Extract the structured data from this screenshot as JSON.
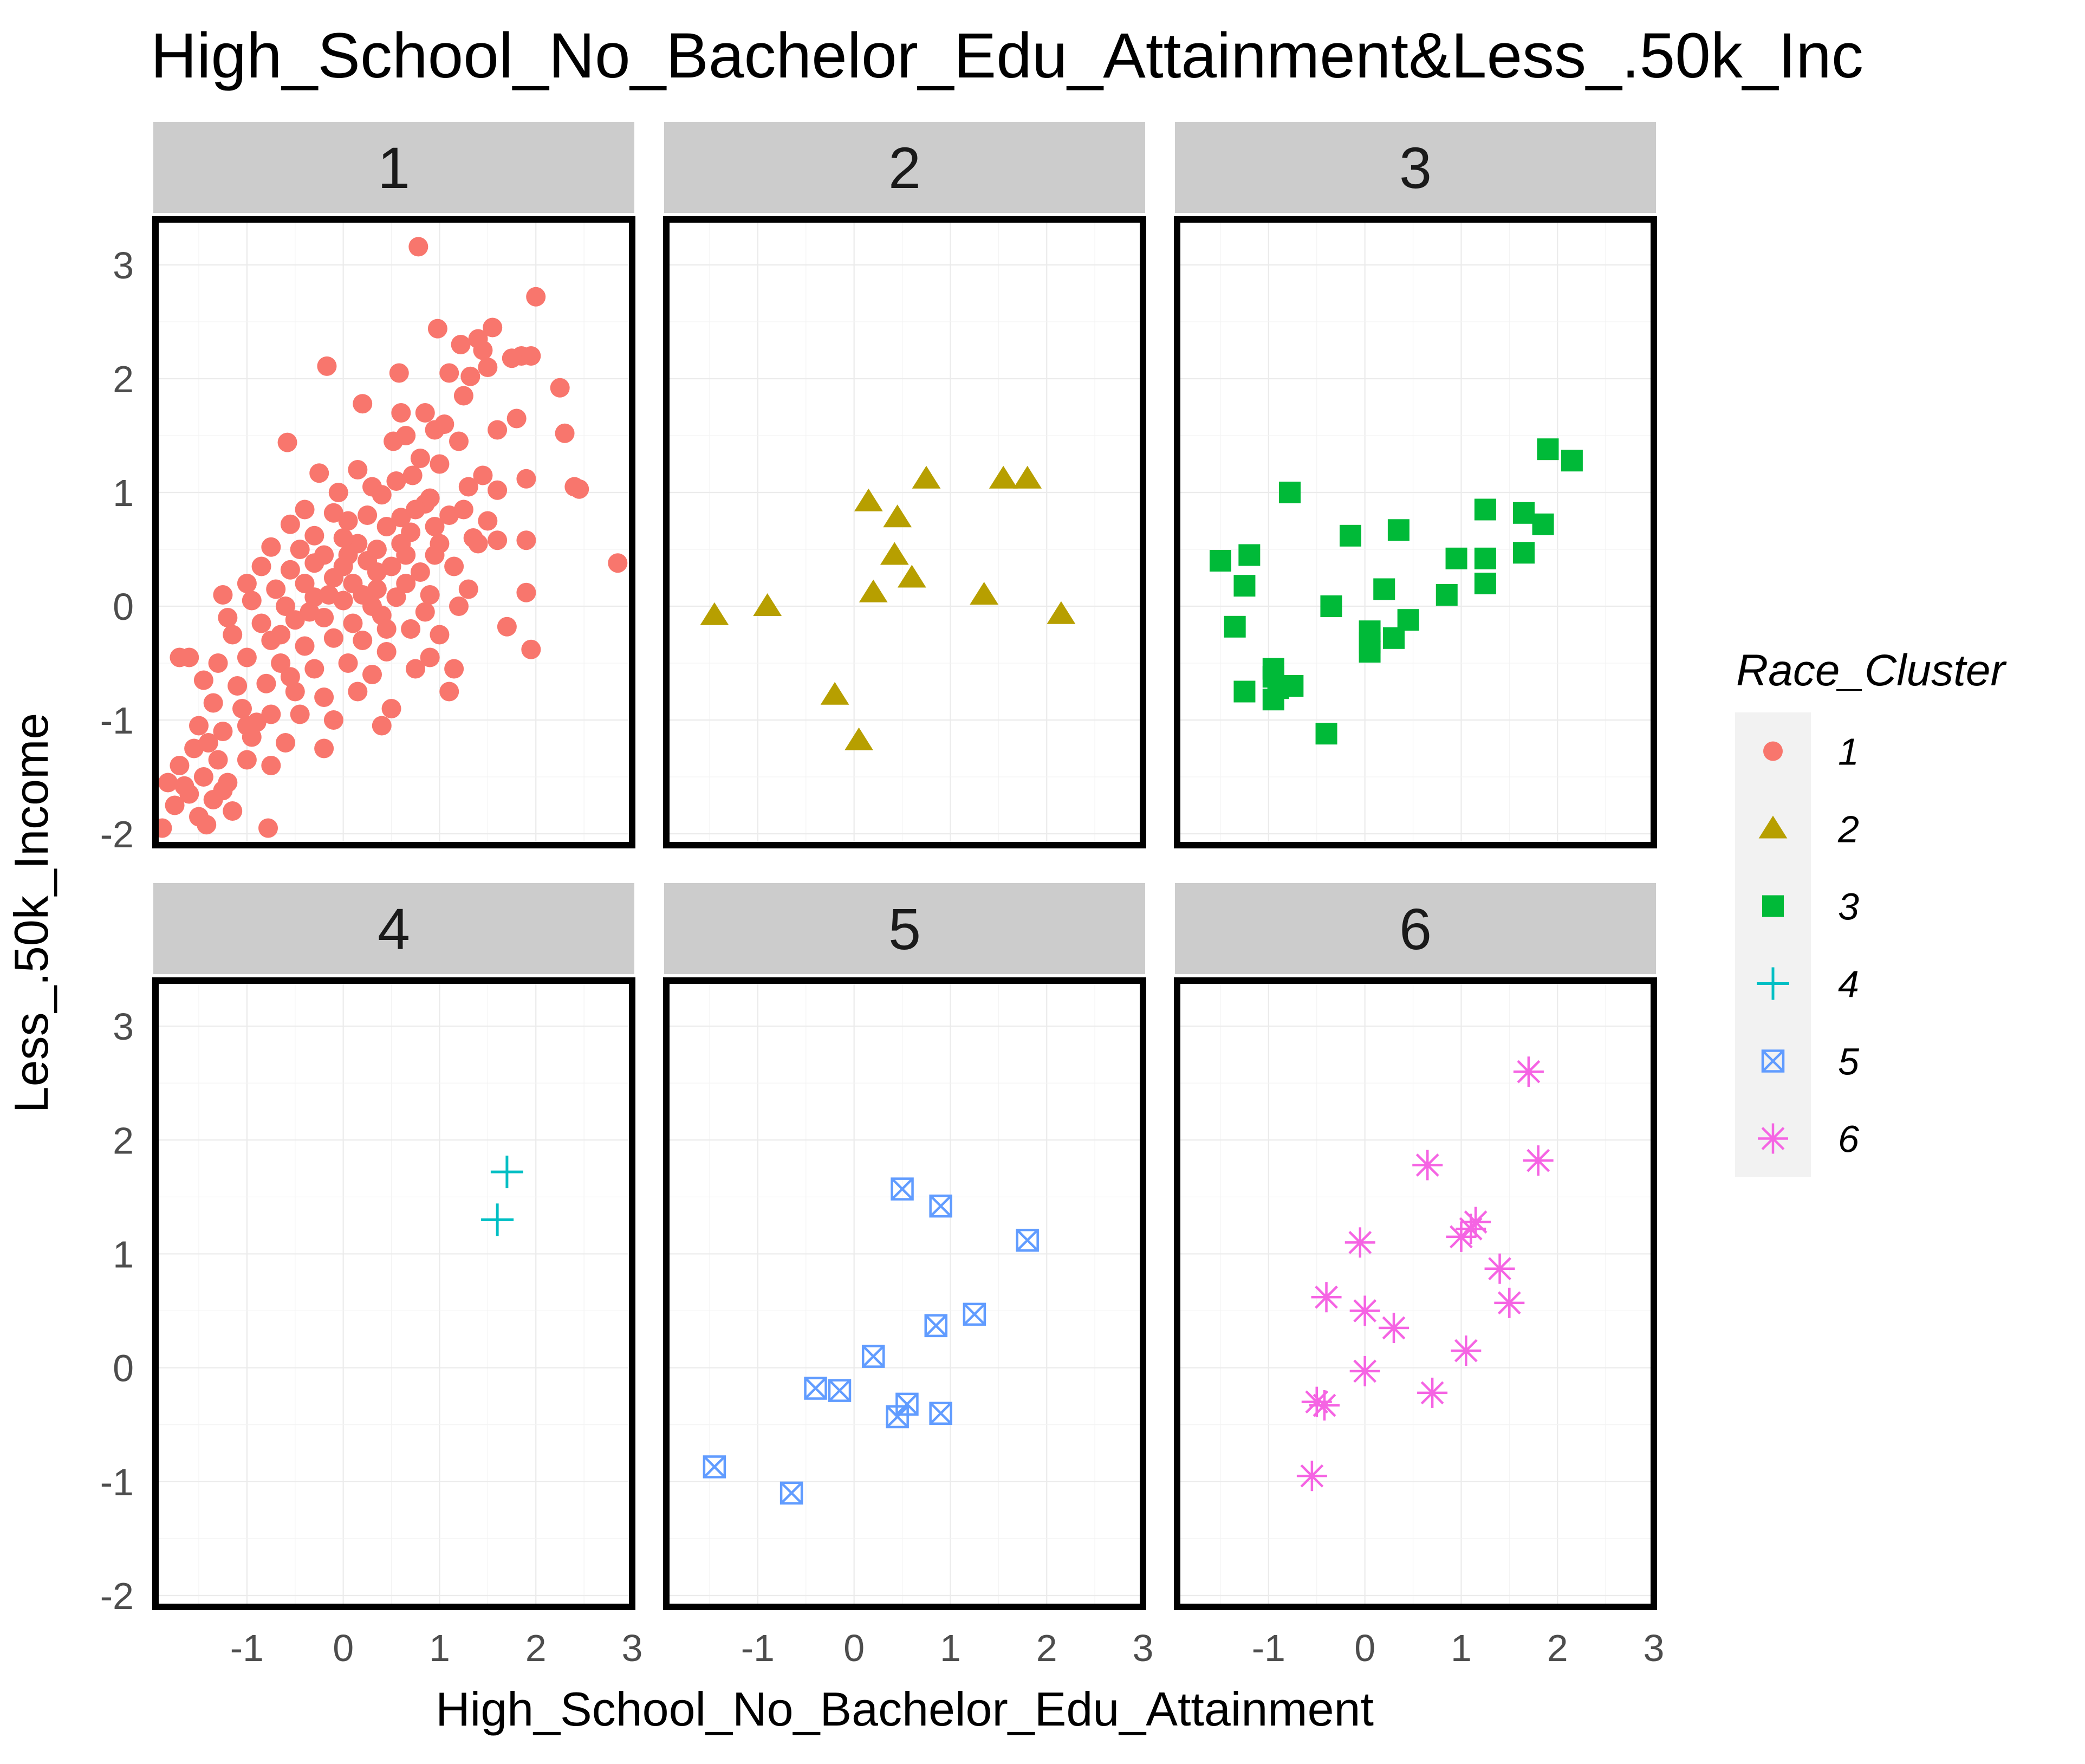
{
  "chart_data": {
    "type": "scatter",
    "title": "High_School_No_Bachelor_Edu_Attainment&Less_.50k_Inc",
    "xlabel": "High_School_No_Bachelor_Edu_Attainment",
    "ylabel": "Less_.50k_Income",
    "xlim": [
      -1.95,
      3.0
    ],
    "ylim": [
      -2.1,
      3.4
    ],
    "x_ticks": [
      -1,
      0,
      1,
      2,
      3
    ],
    "y_ticks": [
      -2,
      -1,
      0,
      1,
      2,
      3
    ],
    "grid": true,
    "facet_by": "Race_Cluster",
    "legend": {
      "title": "Race_Cluster",
      "position": "right",
      "entries": [
        "1",
        "2",
        "3",
        "4",
        "5",
        "6"
      ]
    },
    "colors": {
      "1": "#F8766D",
      "2": "#B79F00",
      "3": "#00BA38",
      "4": "#00BFC4",
      "5": "#619CFF",
      "6": "#F564E3"
    },
    "shapes": {
      "1": "circle",
      "2": "triangle",
      "3": "square",
      "4": "plus",
      "5": "boxed-x",
      "6": "asterisk"
    },
    "series": [
      {
        "name": "1",
        "points": [
          [
            0.78,
            3.16
          ],
          [
            2.0,
            2.72
          ],
          [
            0.98,
            2.44
          ],
          [
            1.55,
            2.45
          ],
          [
            1.4,
            2.35
          ],
          [
            1.45,
            2.25
          ],
          [
            1.85,
            2.2
          ],
          [
            1.75,
            2.18
          ],
          [
            1.95,
            2.2
          ],
          [
            -0.17,
            2.11
          ],
          [
            0.58,
            2.05
          ],
          [
            1.22,
            2.3
          ],
          [
            1.1,
            2.05
          ],
          [
            1.32,
            2.02
          ],
          [
            1.5,
            2.1
          ],
          [
            2.25,
            1.92
          ],
          [
            1.25,
            1.85
          ],
          [
            0.2,
            1.78
          ],
          [
            0.6,
            1.7
          ],
          [
            0.85,
            1.7
          ],
          [
            1.05,
            1.6
          ],
          [
            1.6,
            1.55
          ],
          [
            2.3,
            1.52
          ],
          [
            0.65,
            1.5
          ],
          [
            0.95,
            1.55
          ],
          [
            1.2,
            1.45
          ],
          [
            1.8,
            1.65
          ],
          [
            -0.58,
            1.44
          ],
          [
            0.52,
            1.45
          ],
          [
            0.8,
            1.3
          ],
          [
            1.45,
            1.15
          ],
          [
            1.0,
            1.25
          ],
          [
            0.15,
            1.2
          ],
          [
            -0.25,
            1.17
          ],
          [
            -0.05,
            1.0
          ],
          [
            0.3,
            1.05
          ],
          [
            0.55,
            1.1
          ],
          [
            0.72,
            1.15
          ],
          [
            1.3,
            1.05
          ],
          [
            1.6,
            1.02
          ],
          [
            1.9,
            1.12
          ],
          [
            2.4,
            1.05
          ],
          [
            2.45,
            1.03
          ],
          [
            0.4,
            0.98
          ],
          [
            0.9,
            0.95
          ],
          [
            1.1,
            0.8
          ],
          [
            1.5,
            0.75
          ],
          [
            -0.4,
            0.85
          ],
          [
            -0.1,
            0.82
          ],
          [
            0.25,
            0.8
          ],
          [
            0.6,
            0.78
          ],
          [
            0.85,
            0.9
          ],
          [
            1.25,
            0.85
          ],
          [
            -0.55,
            0.72
          ],
          [
            -0.3,
            0.62
          ],
          [
            0.05,
            0.75
          ],
          [
            0.45,
            0.7
          ],
          [
            0.7,
            0.65
          ],
          [
            1.0,
            0.55
          ],
          [
            1.35,
            0.6
          ],
          [
            1.9,
            0.58
          ],
          [
            -0.75,
            0.52
          ],
          [
            -0.45,
            0.5
          ],
          [
            -0.2,
            0.45
          ],
          [
            0.15,
            0.55
          ],
          [
            0.35,
            0.5
          ],
          [
            0.6,
            0.55
          ],
          [
            0.95,
            0.45
          ],
          [
            1.4,
            0.55
          ],
          [
            1.6,
            0.58
          ],
          [
            2.85,
            0.38
          ],
          [
            -0.85,
            0.35
          ],
          [
            -0.55,
            0.32
          ],
          [
            -0.3,
            0.38
          ],
          [
            0.0,
            0.35
          ],
          [
            0.25,
            0.4
          ],
          [
            0.5,
            0.35
          ],
          [
            0.8,
            0.3
          ],
          [
            1.15,
            0.35
          ],
          [
            -1.0,
            0.2
          ],
          [
            -0.7,
            0.15
          ],
          [
            -0.4,
            0.2
          ],
          [
            -0.1,
            0.25
          ],
          [
            0.1,
            0.2
          ],
          [
            0.35,
            0.15
          ],
          [
            0.65,
            0.2
          ],
          [
            0.9,
            0.1
          ],
          [
            1.3,
            0.15
          ],
          [
            -1.25,
            0.1
          ],
          [
            -0.95,
            0.05
          ],
          [
            -0.6,
            0.0
          ],
          [
            -0.3,
            0.08
          ],
          [
            0.0,
            0.05
          ],
          [
            0.3,
            0.0
          ],
          [
            0.55,
            0.08
          ],
          [
            0.85,
            -0.05
          ],
          [
            1.2,
            0.0
          ],
          [
            1.9,
            0.12
          ],
          [
            -1.2,
            -0.1
          ],
          [
            -0.85,
            -0.15
          ],
          [
            -0.5,
            -0.12
          ],
          [
            -0.2,
            -0.1
          ],
          [
            0.1,
            -0.15
          ],
          [
            0.4,
            -0.08
          ],
          [
            0.7,
            -0.2
          ],
          [
            1.0,
            -0.25
          ],
          [
            1.7,
            -0.18
          ],
          [
            -1.15,
            -0.25
          ],
          [
            -0.75,
            -0.3
          ],
          [
            -0.4,
            -0.35
          ],
          [
            -0.1,
            -0.28
          ],
          [
            0.2,
            -0.3
          ],
          [
            0.45,
            -0.4
          ],
          [
            0.9,
            -0.45
          ],
          [
            1.95,
            -0.38
          ],
          [
            -1.6,
            -0.45
          ],
          [
            -1.3,
            -0.5
          ],
          [
            -1.0,
            -0.45
          ],
          [
            -0.65,
            -0.5
          ],
          [
            -0.3,
            -0.55
          ],
          [
            0.05,
            -0.5
          ],
          [
            0.3,
            -0.6
          ],
          [
            0.75,
            -0.55
          ],
          [
            1.15,
            -0.55
          ],
          [
            -1.45,
            -0.65
          ],
          [
            -1.1,
            -0.7
          ],
          [
            -0.8,
            -0.68
          ],
          [
            -0.5,
            -0.75
          ],
          [
            -0.2,
            -0.8
          ],
          [
            0.15,
            -0.75
          ],
          [
            0.5,
            -0.9
          ],
          [
            1.1,
            -0.75
          ],
          [
            -1.35,
            -0.85
          ],
          [
            -1.05,
            -0.9
          ],
          [
            -0.75,
            -0.95
          ],
          [
            -0.45,
            -0.95
          ],
          [
            -0.1,
            -1.0
          ],
          [
            0.4,
            -1.05
          ],
          [
            -1.5,
            -1.05
          ],
          [
            -1.25,
            -1.1
          ],
          [
            -0.95,
            -1.15
          ],
          [
            -0.6,
            -1.2
          ],
          [
            -0.2,
            -1.25
          ],
          [
            -1.55,
            -1.25
          ],
          [
            -1.3,
            -1.35
          ],
          [
            -1.0,
            -1.35
          ],
          [
            -0.75,
            -1.4
          ],
          [
            -1.7,
            -1.4
          ],
          [
            -1.45,
            -1.5
          ],
          [
            -1.2,
            -1.55
          ],
          [
            -1.82,
            -1.55
          ],
          [
            -1.6,
            -1.65
          ],
          [
            -1.35,
            -1.7
          ],
          [
            -1.75,
            -1.75
          ],
          [
            -1.5,
            -1.85
          ],
          [
            -1.15,
            -1.8
          ],
          [
            -1.88,
            -1.95
          ],
          [
            -1.42,
            -1.92
          ],
          [
            -0.78,
            -1.95
          ],
          [
            -1.65,
            -1.58
          ],
          [
            -1.25,
            -1.62
          ],
          [
            -0.9,
            -1.02
          ],
          [
            -0.55,
            -0.62
          ],
          [
            0.0,
            0.6
          ],
          [
            0.2,
            0.1
          ],
          [
            0.65,
            0.45
          ],
          [
            -0.15,
            0.1
          ],
          [
            0.45,
            -0.2
          ],
          [
            -0.65,
            -0.25
          ],
          [
            0.95,
            0.7
          ],
          [
            -1.7,
            -0.45
          ],
          [
            -1.4,
            -1.2
          ],
          [
            -1.0,
            -1.05
          ],
          [
            0.05,
            0.45
          ],
          [
            0.35,
            0.3
          ],
          [
            -0.35,
            -0.05
          ],
          [
            0.75,
            0.85
          ]
        ]
      },
      {
        "name": "2",
        "points": [
          [
            0.75,
            1.12
          ],
          [
            1.55,
            1.12
          ],
          [
            1.8,
            1.12
          ],
          [
            0.15,
            0.92
          ],
          [
            0.45,
            0.78
          ],
          [
            0.42,
            0.45
          ],
          [
            0.6,
            0.25
          ],
          [
            0.2,
            0.12
          ],
          [
            1.35,
            0.1
          ],
          [
            -0.9,
            0.0
          ],
          [
            -1.45,
            -0.08
          ],
          [
            2.15,
            -0.07
          ],
          [
            -0.2,
            -0.78
          ],
          [
            0.05,
            -1.18
          ]
        ]
      },
      {
        "name": "3",
        "points": [
          [
            1.9,
            1.38
          ],
          [
            2.15,
            1.28
          ],
          [
            -0.78,
            1.0
          ],
          [
            1.25,
            0.85
          ],
          [
            1.65,
            0.82
          ],
          [
            1.85,
            0.72
          ],
          [
            0.35,
            0.67
          ],
          [
            -0.15,
            0.62
          ],
          [
            1.65,
            0.47
          ],
          [
            -1.2,
            0.45
          ],
          [
            -1.5,
            0.4
          ],
          [
            0.95,
            0.42
          ],
          [
            1.25,
            0.42
          ],
          [
            -1.25,
            0.18
          ],
          [
            0.2,
            0.15
          ],
          [
            1.25,
            0.2
          ],
          [
            0.85,
            0.1
          ],
          [
            -0.35,
            0.0
          ],
          [
            0.45,
            -0.12
          ],
          [
            0.05,
            -0.22
          ],
          [
            0.3,
            -0.28
          ],
          [
            0.05,
            -0.32
          ],
          [
            0.05,
            -0.4
          ],
          [
            -1.35,
            -0.18
          ],
          [
            -0.95,
            -0.55
          ],
          [
            -0.95,
            -0.62
          ],
          [
            -0.9,
            -0.72
          ],
          [
            -0.75,
            -0.7
          ],
          [
            -1.25,
            -0.75
          ],
          [
            -0.95,
            -0.82
          ],
          [
            -0.4,
            -1.12
          ]
        ]
      },
      {
        "name": "4",
        "points": [
          [
            1.7,
            1.72
          ],
          [
            1.6,
            1.3
          ]
        ]
      },
      {
        "name": "5",
        "points": [
          [
            0.5,
            1.57
          ],
          [
            0.9,
            1.42
          ],
          [
            1.8,
            1.12
          ],
          [
            1.25,
            0.47
          ],
          [
            0.85,
            0.37
          ],
          [
            0.2,
            0.1
          ],
          [
            -0.4,
            -0.18
          ],
          [
            -0.15,
            -0.2
          ],
          [
            0.55,
            -0.32
          ],
          [
            0.45,
            -0.43
          ],
          [
            0.9,
            -0.4
          ],
          [
            -1.45,
            -0.87
          ],
          [
            -0.65,
            -1.1
          ]
        ]
      },
      {
        "name": "6",
        "points": [
          [
            1.7,
            2.6
          ],
          [
            1.8,
            1.82
          ],
          [
            0.65,
            1.78
          ],
          [
            1.15,
            1.28
          ],
          [
            1.1,
            1.22
          ],
          [
            1.0,
            1.15
          ],
          [
            -0.05,
            1.1
          ],
          [
            1.4,
            0.87
          ],
          [
            -0.4,
            0.62
          ],
          [
            1.5,
            0.57
          ],
          [
            0.0,
            0.5
          ],
          [
            0.3,
            0.35
          ],
          [
            1.05,
            0.15
          ],
          [
            0.0,
            -0.03
          ],
          [
            0.7,
            -0.22
          ],
          [
            -0.5,
            -0.3
          ],
          [
            -0.42,
            -0.33
          ],
          [
            -0.55,
            -0.95
          ]
        ]
      }
    ]
  }
}
